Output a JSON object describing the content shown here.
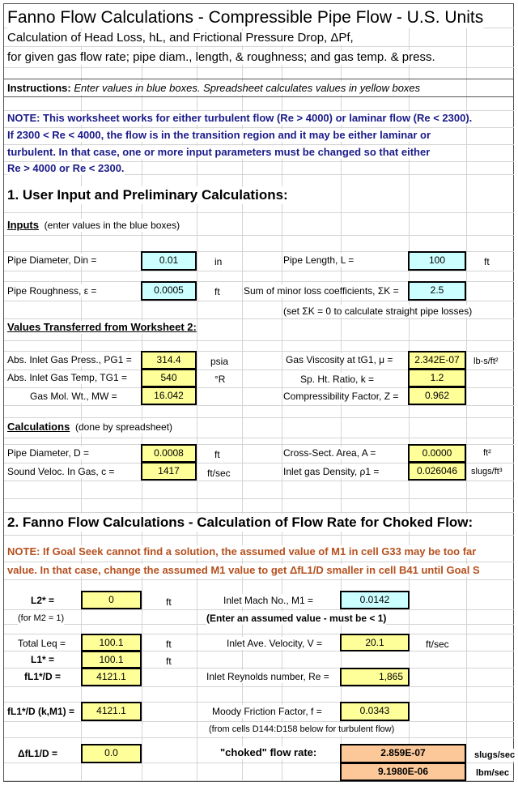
{
  "title": "Fanno Flow Calculations  - Compressible Pipe Flow - U.S. Units",
  "subtitle1": "Calculation of Head Loss, hL, and Frictional Pressure Drop, ΔPf,",
  "subtitle2": "for given gas flow rate; pipe diam., length, & roughness; and gas temp. & press.",
  "instructions": {
    "label": "Instructions:",
    "text": "Enter values in blue boxes.  Spreadsheet calculates values in yellow boxes"
  },
  "note1": [
    "NOTE:  This worksheet works for either turbulent flow (Re > 4000) or laminar flow (Re < 2300).",
    "If 2300 <  Re  <  4000, the flow is in the transition region and it may be either laminar or",
    "turbulent.  In that case, one or more input parameters must be changed so that either",
    "Re > 4000 or Re < 2300."
  ],
  "section1": {
    "title": "1. User Input and Preliminary Calculations:",
    "inputs_heading": "Inputs",
    "inputs_note": "(enter values in the blue boxes)",
    "pipe_diameter": {
      "label": "Pipe Diameter, Din =",
      "value": "0.01",
      "unit": "in"
    },
    "pipe_length": {
      "label": "Pipe Length, L =",
      "value": "100",
      "unit": "ft"
    },
    "roughness": {
      "label": "Pipe Roughness, ε =",
      "value": "0.0005",
      "unit": "ft"
    },
    "minor_loss": {
      "label": "Sum of minor loss coefficients, ΣK =",
      "value": "2.5"
    },
    "minor_note": "(set ΣK = 0 to calculate straight pipe losses)",
    "transferred_heading": "Values Transferred from Worksheet 2:",
    "pressure": {
      "label": "Abs. Inlet Gas Press., PG1 =",
      "value": "314.4",
      "unit": "psia"
    },
    "temp": {
      "label": "Abs. Inlet Gas Temp, TG1 =",
      "value": "540",
      "unit": "°R"
    },
    "mol_wt": {
      "label": "Gas Mol. Wt.,  MW =",
      "value": "16.042"
    },
    "viscosity": {
      "label": "Gas Viscosity at tG1,  μ  =",
      "value": "2.342E-07",
      "unit": "lb-s/ft²"
    },
    "sp_ht": {
      "label": "Sp. Ht. Ratio, k  =",
      "value": "1.2"
    },
    "compress": {
      "label": "Compressibility Factor, Z =",
      "value": "0.962"
    },
    "calc_heading": "Calculations",
    "calc_note": "(done by spreadsheet)",
    "diameter_ft": {
      "label": "Pipe Diameter, D =",
      "value": "0.0008",
      "unit": "ft"
    },
    "sound": {
      "label": "Sound Veloc. In Gas, c =",
      "value": "1417",
      "unit": "ft/sec"
    },
    "area": {
      "label": "Cross-Sect. Area, A =",
      "value": "0.0000",
      "unit": "ft²"
    },
    "density": {
      "label": "Inlet gas Density, ρ1 =",
      "value": "0.026046",
      "unit": "slugs/ft³"
    }
  },
  "section2": {
    "title": "2. Fanno Flow Calculations - Calculation of Flow Rate for Choked Flow:",
    "note": [
      "NOTE:  If Goal Seek cannot find a solution, the assumed value of M1 in cell G33 may be too far",
      "value.  In that case, change the assumed M1 value to get ΔfL1/D smaller in cell B41 until Goal S"
    ],
    "l2": {
      "label": "L2* =",
      "value": "0",
      "unit": "ft",
      "note": "(for M2 = 1)"
    },
    "mach": {
      "label": "Inlet Mach No., M1 =",
      "value": "0.0142",
      "note": "(Enter an assumed value - must be < 1)"
    },
    "leq": {
      "label": "Total Leq =",
      "value": "100.1",
      "unit": "ft"
    },
    "l1": {
      "label": "L1* =",
      "value": "100.1",
      "unit": "ft"
    },
    "fl1d": {
      "label": "fL1*/D =",
      "value": "4121.1"
    },
    "velocity": {
      "label": "Inlet Ave. Velocity, V =",
      "value": "20.1",
      "unit": "ft/sec"
    },
    "re": {
      "label": "Inlet Reynolds number, Re =",
      "value": "1,865"
    },
    "fl1dk": {
      "label": "fL1*/D (k,M1) =",
      "value": "4121.1"
    },
    "friction": {
      "label": "Moody Friction Factor, f =",
      "value": "0.0343",
      "note": "(from cells D144:D158 below for turbulent flow)"
    },
    "dfl": {
      "label": "ΔfL1/D  =",
      "value": "0.0"
    },
    "choked": {
      "label": "\"choked\" flow rate:",
      "value1": "2.859E-07",
      "unit1": "slugs/sec",
      "value2": "9.1980E-06",
      "unit2": "lbm/sec"
    }
  },
  "colors": {
    "input": "#ccffff",
    "calc": "#ffff99",
    "result": "#fcc89a",
    "note_blue": "#1a1a8a",
    "note_red": "#b5501e"
  }
}
